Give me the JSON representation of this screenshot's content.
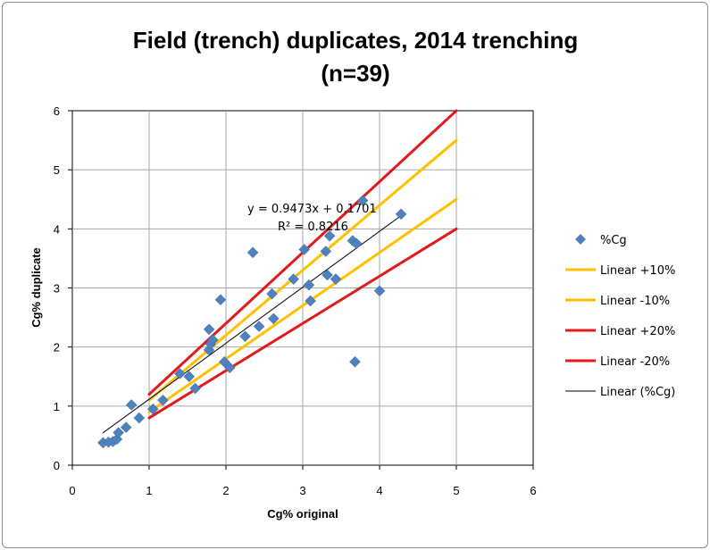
{
  "chart_data": {
    "type": "scatter",
    "title_line1": "Field (trench) duplicates, 2014 trenching",
    "title_line2": "(n=39)",
    "xlabel": "Cg% original",
    "ylabel": "Cg% duplicate",
    "xlim": [
      0,
      6
    ],
    "ylim": [
      0,
      6
    ],
    "x_ticks": [
      0,
      1,
      2,
      3,
      4,
      5,
      6
    ],
    "y_ticks": [
      0,
      1,
      2,
      3,
      4,
      5,
      6
    ],
    "grid": "major",
    "legend_position": "right",
    "series": [
      {
        "name": "%Cg",
        "kind": "scatter",
        "marker": "diamond",
        "color": "#4f81bd",
        "points": [
          [
            0.4,
            0.38
          ],
          [
            0.47,
            0.39
          ],
          [
            0.53,
            0.4
          ],
          [
            0.58,
            0.44
          ],
          [
            0.6,
            0.55
          ],
          [
            0.7,
            0.64
          ],
          [
            0.77,
            1.02
          ],
          [
            0.87,
            0.8
          ],
          [
            1.05,
            0.95
          ],
          [
            1.18,
            1.1
          ],
          [
            1.4,
            1.55
          ],
          [
            1.52,
            1.5
          ],
          [
            1.6,
            1.3
          ],
          [
            1.78,
            1.95
          ],
          [
            1.78,
            2.3
          ],
          [
            1.8,
            2.05
          ],
          [
            1.83,
            2.12
          ],
          [
            1.93,
            2.8
          ],
          [
            1.98,
            1.75
          ],
          [
            2.05,
            1.65
          ],
          [
            2.25,
            2.18
          ],
          [
            2.35,
            3.6
          ],
          [
            2.43,
            2.35
          ],
          [
            2.6,
            2.9
          ],
          [
            2.62,
            2.48
          ],
          [
            2.88,
            3.15
          ],
          [
            3.02,
            3.65
          ],
          [
            3.08,
            3.05
          ],
          [
            3.1,
            2.78
          ],
          [
            3.3,
            3.62
          ],
          [
            3.32,
            3.22
          ],
          [
            3.35,
            3.88
          ],
          [
            3.43,
            3.15
          ],
          [
            3.65,
            3.8
          ],
          [
            3.7,
            3.75
          ],
          [
            3.68,
            1.75
          ],
          [
            3.78,
            4.48
          ],
          [
            4.0,
            2.95
          ],
          [
            4.28,
            4.25
          ]
        ]
      },
      {
        "name": "Linear +10%",
        "kind": "line",
        "color": "#ffc000",
        "width": 3,
        "points": [
          [
            1,
            1.1
          ],
          [
            5,
            5.5
          ]
        ]
      },
      {
        "name": "Linear -10%",
        "kind": "line",
        "color": "#ffc000",
        "width": 3,
        "points": [
          [
            1,
            0.9
          ],
          [
            5,
            4.5
          ]
        ]
      },
      {
        "name": "Linear +20%",
        "kind": "line",
        "color": "#e31a1c",
        "width": 3,
        "points": [
          [
            1,
            1.2
          ],
          [
            5,
            6.0
          ]
        ]
      },
      {
        "name": "Linear -20%",
        "kind": "line",
        "color": "#e31a1c",
        "width": 3,
        "points": [
          [
            1,
            0.8
          ],
          [
            5,
            4.0
          ]
        ]
      },
      {
        "name": "Linear (%Cg)",
        "kind": "line",
        "color": "#000000",
        "width": 1,
        "points": [
          [
            0.4,
            0.549
          ],
          [
            4.28,
            4.224
          ]
        ]
      }
    ],
    "trendline": {
      "equation": "y = 0.9473x + 0.1701",
      "r2_label": "R² = 0.8216"
    }
  }
}
